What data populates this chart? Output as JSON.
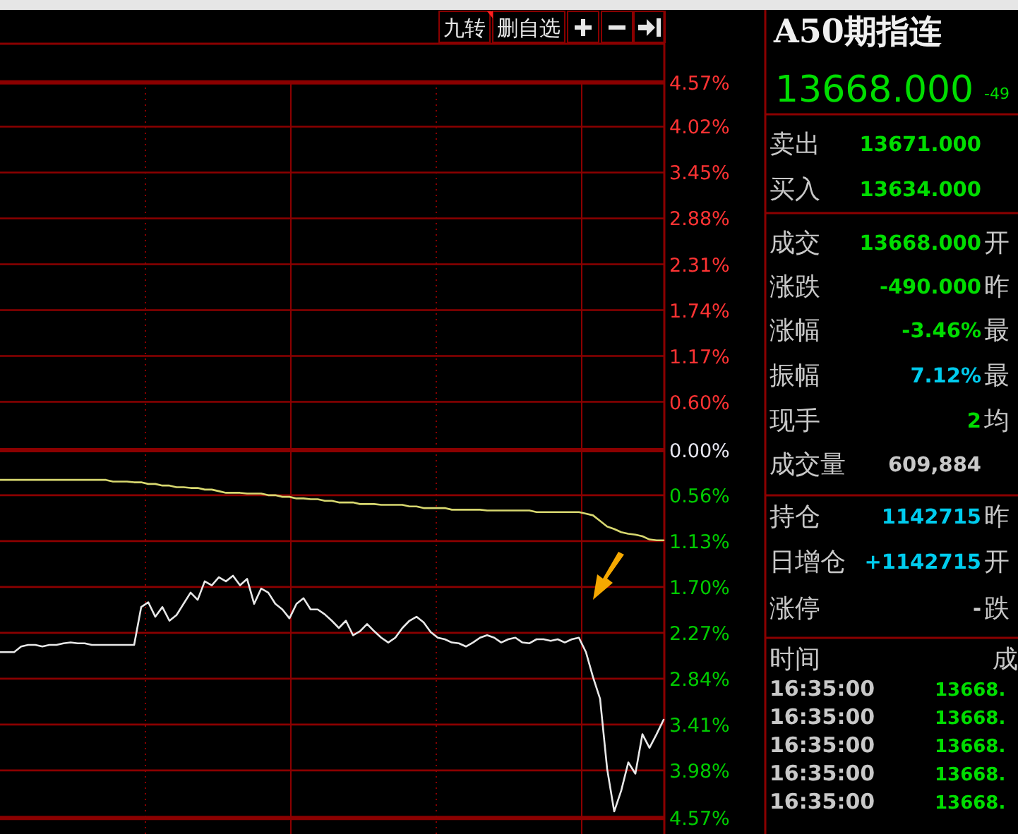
{
  "chart_data": [
    {
      "type": "line",
      "categories": [
        null,
        null,
        null,
        null,
        null,
        null,
        null,
        null,
        null,
        null,
        null,
        null,
        null,
        null,
        null,
        null,
        null,
        null,
        null,
        null,
        null,
        null,
        null,
        null,
        null,
        null,
        null,
        null,
        null,
        null,
        null,
        null,
        null,
        null,
        null,
        null,
        null,
        null,
        null,
        null,
        null,
        null,
        null,
        null,
        null,
        null,
        null,
        null,
        null,
        null,
        null,
        null,
        null,
        null,
        null,
        null,
        null,
        null,
        null,
        null,
        null,
        null,
        null,
        null,
        null,
        null,
        null,
        null,
        null,
        null,
        null,
        null,
        null,
        null,
        null,
        null,
        null,
        null,
        null,
        null,
        null,
        null,
        null,
        null,
        null,
        null,
        null,
        null,
        null,
        null,
        null,
        null,
        null,
        null,
        null
      ],
      "series": [
        {
          "color": "#e8e8e8",
          "values": [
            -2.51,
            -2.51,
            -2.51,
            -2.44,
            -2.42,
            -2.42,
            -2.44,
            -2.42,
            -2.42,
            -2.4,
            -2.39,
            -2.4,
            -2.4,
            -2.42,
            -2.42,
            -2.42,
            -2.42,
            -2.42,
            -2.42,
            -2.42,
            -1.95,
            -1.89,
            -2.07,
            -1.95,
            -2.12,
            -2.05,
            -1.91,
            -1.77,
            -1.86,
            -1.63,
            -1.68,
            -1.58,
            -1.63,
            -1.56,
            -1.68,
            -1.6,
            -1.91,
            -1.72,
            -1.77,
            -1.91,
            -1.98,
            -2.09,
            -1.91,
            -1.84,
            -1.98,
            -1.98,
            -2.04,
            -2.12,
            -2.21,
            -2.12,
            -2.3,
            -2.25,
            -2.16,
            -2.25,
            -2.33,
            -2.39,
            -2.33,
            -2.21,
            -2.12,
            -2.07,
            -2.14,
            -2.26,
            -2.33,
            -2.35,
            -2.39,
            -2.4,
            -2.44,
            -2.39,
            -2.33,
            -2.3,
            -2.33,
            -2.39,
            -2.35,
            -2.33,
            -2.39,
            -2.4,
            -2.35,
            -2.35,
            -2.37,
            -2.35,
            -2.39,
            -2.35,
            -2.33,
            -2.51,
            -2.82,
            -3.09,
            -3.96,
            -4.49,
            -4.23,
            -3.88,
            -4.02,
            -3.53,
            -3.7,
            -3.53,
            -3.35
          ]
        },
        {
          "color": "#d8d870",
          "values": [
            -0.37,
            -0.37,
            -0.37,
            -0.37,
            -0.37,
            -0.37,
            -0.37,
            -0.37,
            -0.37,
            -0.37,
            -0.37,
            -0.37,
            -0.37,
            -0.37,
            -0.37,
            -0.37,
            -0.39,
            -0.39,
            -0.39,
            -0.4,
            -0.4,
            -0.42,
            -0.42,
            -0.44,
            -0.44,
            -0.46,
            -0.46,
            -0.47,
            -0.47,
            -0.49,
            -0.49,
            -0.51,
            -0.53,
            -0.53,
            -0.53,
            -0.54,
            -0.54,
            -0.54,
            -0.56,
            -0.56,
            -0.58,
            -0.58,
            -0.6,
            -0.6,
            -0.61,
            -0.61,
            -0.63,
            -0.63,
            -0.65,
            -0.65,
            -0.65,
            -0.67,
            -0.67,
            -0.67,
            -0.68,
            -0.68,
            -0.68,
            -0.68,
            -0.7,
            -0.7,
            -0.72,
            -0.72,
            -0.72,
            -0.72,
            -0.74,
            -0.74,
            -0.74,
            -0.74,
            -0.74,
            -0.75,
            -0.75,
            -0.75,
            -0.75,
            -0.75,
            -0.75,
            -0.75,
            -0.77,
            -0.77,
            -0.77,
            -0.77,
            -0.77,
            -0.77,
            -0.77,
            -0.79,
            -0.81,
            -0.88,
            -0.95,
            -0.98,
            -1.02,
            -1.04,
            -1.05,
            -1.07,
            -1.11,
            -1.12,
            -1.12
          ]
        }
      ],
      "ylim": [
        -4.77,
        5.05
      ],
      "yticks": [
        {
          "value": 4.57,
          "label": "4.57%"
        },
        {
          "value": 4.02,
          "label": "4.02%"
        },
        {
          "value": 3.45,
          "label": "3.45%"
        },
        {
          "value": 2.88,
          "label": "2.88%"
        },
        {
          "value": 2.31,
          "label": "2.31%"
        },
        {
          "value": 1.74,
          "label": "1.74%"
        },
        {
          "value": 1.17,
          "label": "1.17%"
        },
        {
          "value": 0.6,
          "label": "0.60%"
        },
        {
          "value": 0,
          "label": "0.00%"
        },
        {
          "value": -0.56,
          "label": "0.56%"
        },
        {
          "value": -1.13,
          "label": "1.13%"
        },
        {
          "value": -1.7,
          "label": "1.70%"
        },
        {
          "value": -2.27,
          "label": "2.27%"
        },
        {
          "value": -2.84,
          "label": "2.84%"
        },
        {
          "value": -3.41,
          "label": "3.41%"
        },
        {
          "value": -3.98,
          "label": "3.98%"
        },
        {
          "value": -4.57,
          "label": "4.57%"
        }
      ],
      "grid": true,
      "annotations": [
        "九转",
        "删自选"
      ]
    },
    {
      "type": "other",
      "title": "A50期指连",
      "annotations": [
        "13668.000",
        "-49",
        "卖出",
        "13671.000",
        "买入",
        "13634.000",
        "成交",
        "13668.000",
        "开",
        "涨跌",
        "-490.000",
        "昨",
        "涨幅",
        "-3.46%",
        "最",
        "振幅",
        "7.12%",
        "最",
        "现手",
        "2",
        "均",
        "成交量",
        "609,884",
        "持仓",
        "1142715",
        "昨",
        "日增仓",
        "+1142715",
        "开",
        "涨停",
        "-",
        "跌",
        "时间",
        "成",
        "16:35:00",
        "13668.",
        "16:35:00",
        "13668.",
        "16:35:00",
        "13668.",
        "16:35:00",
        "13668.",
        "16:35:00",
        "13668."
      ]
    }
  ]
}
